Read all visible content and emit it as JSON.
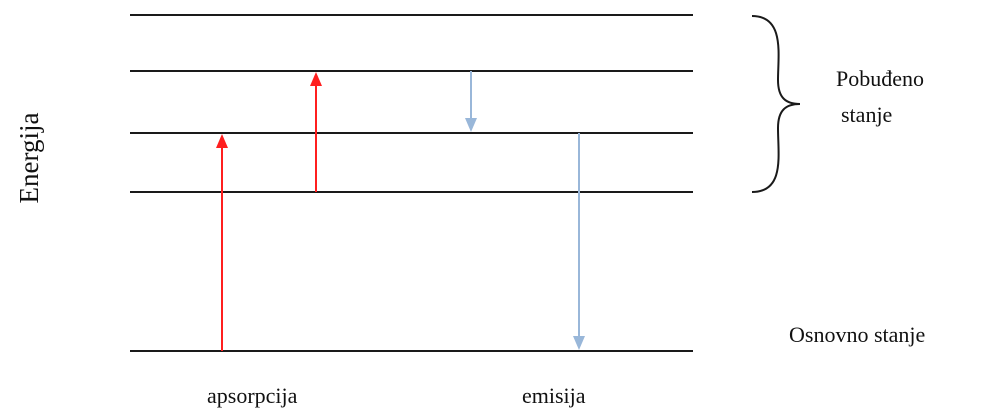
{
  "axis": {
    "label": "Energija"
  },
  "labels": {
    "excited_state_line1": "Pobuđeno",
    "excited_state_line2": "stanje",
    "ground_state": "Osnovno stanje",
    "absorption": "apsorpcija",
    "emission": "emisija"
  },
  "colors": {
    "levels": "#1a1a1a",
    "absorption": "#ff1f1f",
    "emission": "#99b7d9",
    "brace": "#1a1a1a",
    "text": "#111111"
  },
  "energy_levels": [
    {
      "name": "ground-state-level"
    },
    {
      "name": "excited-level-1"
    },
    {
      "name": "excited-level-2"
    },
    {
      "name": "excited-level-3"
    },
    {
      "name": "excited-level-4"
    }
  ],
  "transitions": [
    {
      "name": "absorption-arrow-to-level-2",
      "type": "absorption",
      "from": 0,
      "to": 2
    },
    {
      "name": "absorption-arrow-to-level-3",
      "type": "absorption",
      "from": 1,
      "to": 3
    },
    {
      "name": "emission-arrow-level-3-to-2",
      "type": "emission",
      "from": 3,
      "to": 2
    },
    {
      "name": "emission-arrow-level-2-to-ground",
      "type": "emission",
      "from": 2,
      "to": 0
    }
  ]
}
